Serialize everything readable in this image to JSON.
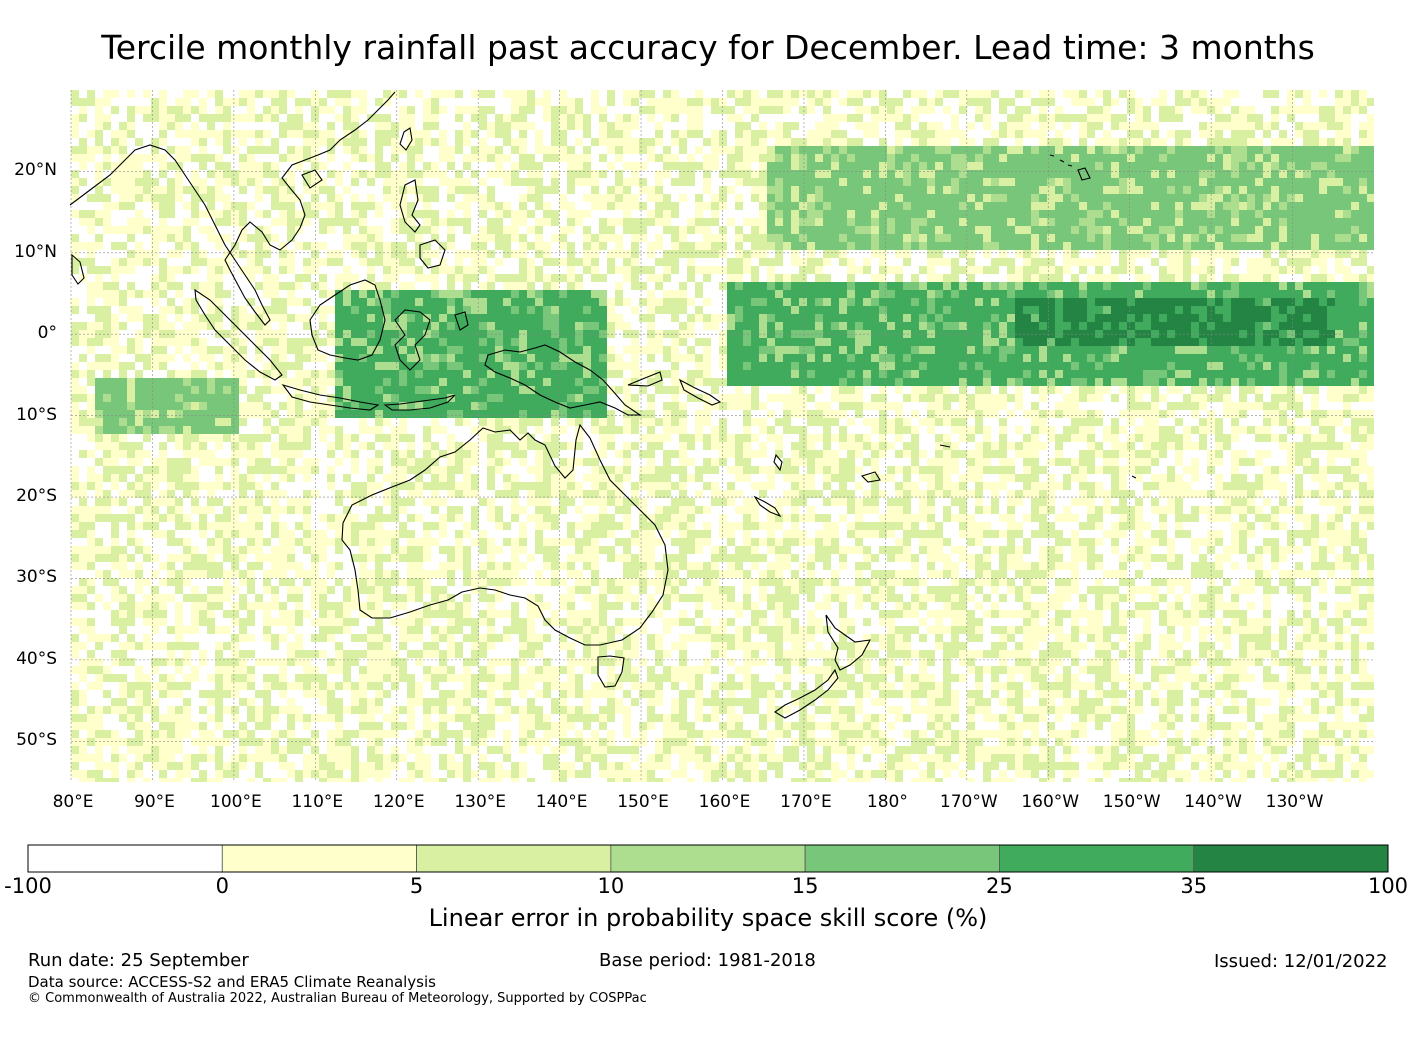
{
  "title": "Tercile monthly rainfall past accuracy for December. Lead time: 3 months",
  "map": {
    "lat_labels": [
      "20°N",
      "10°N",
      "0°",
      "10°S",
      "20°S",
      "30°S",
      "40°S",
      "50°S"
    ],
    "lon_labels": [
      "80°E",
      "90°E",
      "100°E",
      "110°E",
      "120°E",
      "130°E",
      "140°E",
      "150°E",
      "160°E",
      "170°E",
      "180°",
      "170°W",
      "160°W",
      "150°W",
      "140°W",
      "130°W"
    ],
    "lat_range": [
      -55,
      30
    ],
    "lon_range": [
      80,
      240
    ],
    "skill_bands": [
      {
        "name": "zone-warm-pool",
        "lon": [
          112,
          145
        ],
        "lat": [
          -10,
          6
        ],
        "level": 5
      },
      {
        "name": "zone-central-equatorial",
        "lon": [
          160,
          240
        ],
        "lat": [
          -6,
          7
        ],
        "level": 5
      },
      {
        "name": "zone-equatorial-core",
        "lon": [
          195,
          235
        ],
        "lat": [
          -1,
          5
        ],
        "level": 6
      },
      {
        "name": "zone-north-pacific-band",
        "lon": [
          165,
          240
        ],
        "lat": [
          11,
          24
        ],
        "level": 4
      },
      {
        "name": "zone-indian-ocean",
        "lon": [
          82,
          100
        ],
        "lat": [
          -12,
          -5
        ],
        "level": 4
      }
    ]
  },
  "colorbar": {
    "label": "Linear error in probability space skill score (%)",
    "ticks": [
      "-100",
      "0",
      "5",
      "10",
      "15",
      "25",
      "35",
      "100"
    ],
    "colors": [
      "#ffffff",
      "#ffffcc",
      "#d9f0a3",
      "#addd8e",
      "#78c679",
      "#41ab5d",
      "#238443"
    ]
  },
  "footer": {
    "run_date": "Run date: 25 September",
    "base_period": "Base period: 1981-2018",
    "issued": "Issued: 12/01/2022",
    "data_source": "Data source: ACCESS-S2 and ERA5 Climate Reanalysis",
    "copyright": "© Commonwealth of Australia 2022, Australian Bureau of Meteorology, Supported by COSPPac"
  }
}
